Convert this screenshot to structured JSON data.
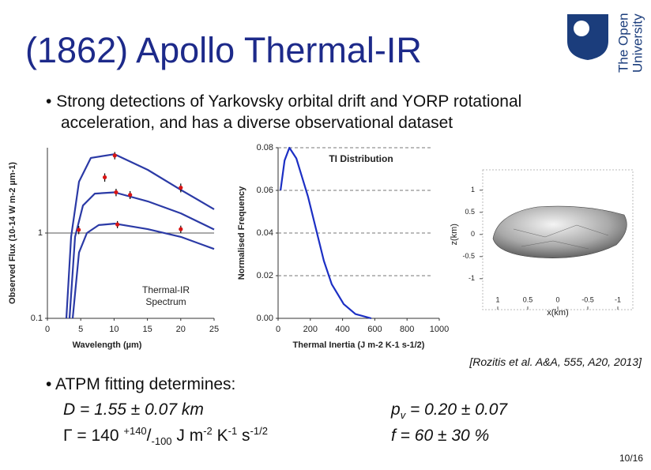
{
  "slide_title": "(1862) Apollo Thermal-IR",
  "logo": [
    "The Open",
    "University"
  ],
  "intro": [
    "Strong detections of Yarkovsky orbital drift and YORP rotational",
    "acceleration, and has a diverse observational dataset"
  ],
  "citation": "[Rozitis et al. A&A, 555, A20, 2013]",
  "atpm": {
    "heading": "ATPM fitting determines:",
    "diameter": "D = 1.55 ± 0.07 km",
    "gamma_parts": [
      "Γ = 140 ",
      "+140",
      "/",
      "-100",
      " J m",
      "-2",
      " K",
      "-1",
      " s",
      "-1/2"
    ],
    "albedo_parts": [
      "p",
      "v",
      " = 0.20 ± 0.07"
    ],
    "roughness": "f = 60 ± 30 %"
  },
  "page_number": "10/16",
  "chart_data": [
    {
      "type": "line",
      "log_y": true,
      "annotation": [
        "Thermal-IR",
        "Spectrum"
      ],
      "x_label": "Wavelength (µm)",
      "y_label": "Observed Flux (10-14 W m-2 µm-1)",
      "xlim": [
        0,
        25
      ],
      "xticks": [
        0,
        5,
        10,
        15,
        20,
        25
      ],
      "ylim": [
        0.1,
        10
      ],
      "yticks": [
        0.1,
        1
      ],
      "grid": true,
      "series": [
        {
          "color": "#2b3aa6",
          "x": [
            2.84,
            3.55,
            4.74,
            6.52,
            10.07,
            15.05,
            20.02,
            25
          ],
          "values": [
            0.1,
            0.9,
            4.0,
            7.6,
            8.4,
            5.5,
            3.2,
            1.9
          ]
        },
        {
          "color": "#2b3aa6",
          "x": [
            3.32,
            4.15,
            5.33,
            7.11,
            10.07,
            15.05,
            20.02,
            25
          ],
          "values": [
            0.1,
            0.9,
            2.1,
            2.9,
            3.0,
            2.35,
            1.7,
            1.1
          ]
        },
        {
          "color": "#2b3aa6",
          "x": [
            3.79,
            4.74,
            5.92,
            7.7,
            10.07,
            15.05,
            20.02,
            25
          ],
          "values": [
            0.1,
            0.59,
            1.0,
            1.24,
            1.29,
            1.11,
            0.9,
            0.65
          ]
        }
      ],
      "points": {
        "color": "#d81414",
        "x": [
          4.7,
          10.1,
          8.6,
          10.3,
          12.4,
          20.0,
          10.5,
          20.0
        ],
        "values": [
          1.09,
          8.1,
          4.5,
          3.0,
          2.8,
          3.4,
          1.26,
          1.11
        ],
        "errors": [
          0.12,
          0.8,
          0.5,
          0.3,
          0.3,
          0.4,
          0.12,
          0.11
        ]
      }
    },
    {
      "type": "line",
      "title": "TI Distribution",
      "x_label": "Thermal Inertia (J m-2 K-1 s-1/2)",
      "y_label": "Normalised Frequency",
      "xlim": [
        0,
        1000
      ],
      "xticks": [
        0,
        200,
        400,
        600,
        800,
        1000
      ],
      "ylim": [
        0,
        0.08
      ],
      "yticks": [
        {
          "value": 0,
          "label": "0.00"
        },
        {
          "value": 0.02,
          "label": "0.02"
        },
        {
          "value": 0.04,
          "label": "0.04"
        },
        {
          "value": 0.06,
          "label": "0.06"
        },
        {
          "value": 0.08,
          "label": "0.08"
        }
      ],
      "grid": true,
      "series": [
        {
          "color": "#1c2fc4",
          "x": [
            15,
            40,
            70,
            113,
            186,
            235,
            284,
            333,
            407,
            480,
            578
          ],
          "values": [
            0.06,
            0.074,
            0.08,
            0.075,
            0.057,
            0.042,
            0.027,
            0.016,
            0.0067,
            0.002,
            0
          ]
        }
      ]
    },
    {
      "type": "surface",
      "x_label": "x(km)",
      "y_label": "z(km)",
      "xlim": [
        1.25,
        -1.25
      ],
      "xticks": [
        1,
        0.5,
        0,
        -0.5,
        -1
      ],
      "ylim": [
        -1.7,
        1.46
      ],
      "yticks": [
        1,
        0.5,
        0,
        -0.5,
        -1
      ]
    }
  ]
}
